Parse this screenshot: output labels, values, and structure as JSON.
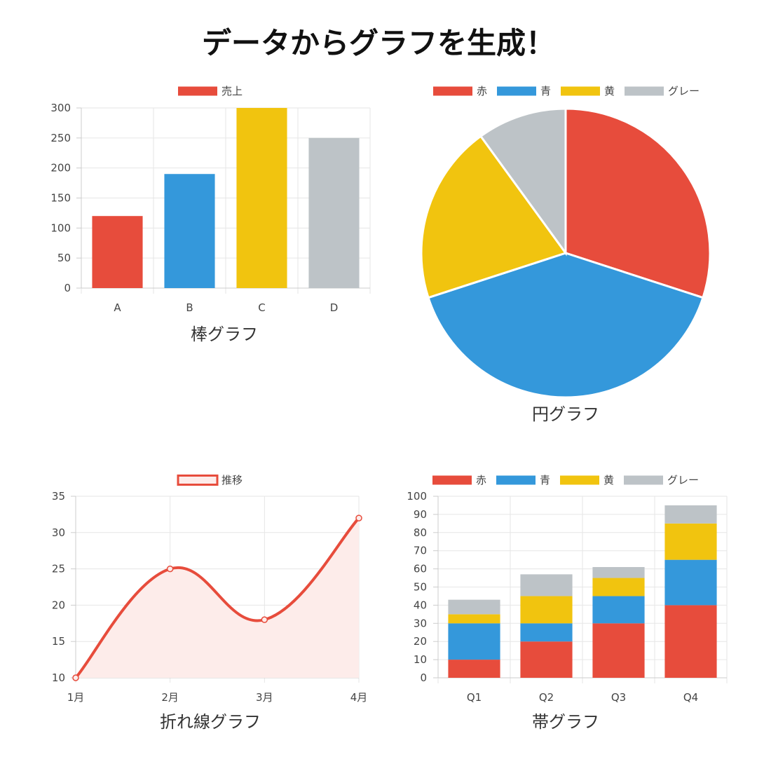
{
  "title": "データからグラフを生成！",
  "colors": {
    "red": "#e74c3c",
    "blue": "#3498db",
    "yellow": "#f1c40f",
    "gray": "#bdc3c7",
    "line_fill": "#fdecea"
  },
  "chart_data": [
    {
      "type": "bar",
      "caption": "棒グラフ",
      "legend": [
        "売上"
      ],
      "legend_position": "top",
      "categories": [
        "A",
        "B",
        "C",
        "D"
      ],
      "values": [
        120,
        190,
        300,
        250
      ],
      "bar_colors": [
        "#e74c3c",
        "#3498db",
        "#f1c40f",
        "#bdc3c7"
      ],
      "yticks": [
        "0",
        "50",
        "100",
        "150",
        "200",
        "250",
        "300"
      ],
      "ylim": [
        0,
        300
      ],
      "grid": true
    },
    {
      "type": "pie",
      "caption": "円グラフ",
      "legend_position": "top",
      "labels": [
        "赤",
        "青",
        "黄",
        "グレー"
      ],
      "values": [
        30,
        40,
        20,
        10
      ],
      "slice_colors": [
        "#e74c3c",
        "#3498db",
        "#f1c40f",
        "#bdc3c7"
      ]
    },
    {
      "type": "line",
      "caption": "折れ線グラフ",
      "legend": [
        "推移"
      ],
      "legend_position": "top",
      "categories": [
        "1月",
        "2月",
        "3月",
        "4月"
      ],
      "values": [
        10,
        25,
        18,
        32
      ],
      "yticks": [
        "10",
        "15",
        "20",
        "25",
        "30",
        "35"
      ],
      "ylim": [
        10,
        35
      ],
      "fill": true,
      "smooth": true,
      "grid": true
    },
    {
      "type": "bar",
      "stacked": true,
      "caption": "帯グラフ",
      "legend_position": "top",
      "categories": [
        "Q1",
        "Q2",
        "Q3",
        "Q4"
      ],
      "series": [
        {
          "name": "赤",
          "values": [
            10,
            20,
            30,
            40
          ]
        },
        {
          "name": "青",
          "values": [
            20,
            10,
            15,
            25
          ]
        },
        {
          "name": "黄",
          "values": [
            5,
            15,
            10,
            20
          ]
        },
        {
          "name": "グレー",
          "values": [
            8,
            12,
            6,
            10
          ]
        }
      ],
      "series_colors": [
        "#e74c3c",
        "#3498db",
        "#f1c40f",
        "#bdc3c7"
      ],
      "yticks": [
        "0",
        "10",
        "20",
        "30",
        "40",
        "50",
        "60",
        "70",
        "80",
        "90",
        "100"
      ],
      "ylim": [
        0,
        100
      ],
      "grid": true
    }
  ]
}
